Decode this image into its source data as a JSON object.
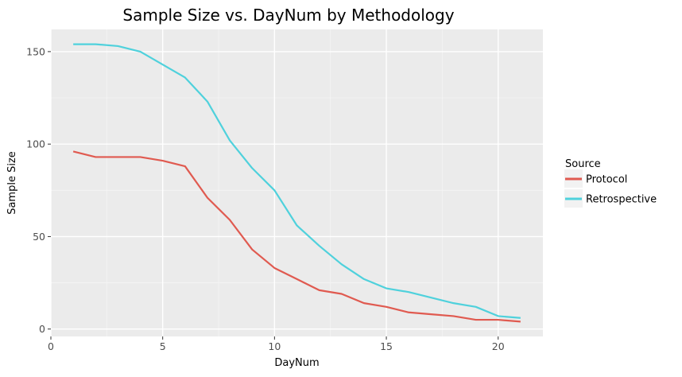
{
  "chart_data": {
    "type": "line",
    "title": "Sample Size vs. DayNum by Methodology",
    "xlabel": "DayNum",
    "ylabel": "Sample Size",
    "xlim": [
      0,
      22
    ],
    "ylim": [
      -4,
      162
    ],
    "x_ticks": [
      0,
      5,
      10,
      15,
      20
    ],
    "y_ticks": [
      0,
      50,
      100,
      150
    ],
    "grid": true,
    "legend": {
      "title": "Source",
      "placement": "right"
    },
    "x": [
      1,
      2,
      3,
      4,
      5,
      6,
      7,
      8,
      9,
      10,
      11,
      12,
      13,
      14,
      15,
      16,
      17,
      18,
      19,
      20,
      21
    ],
    "series": [
      {
        "name": "Protocol",
        "color": "#e05a50",
        "values": [
          96,
          93,
          93,
          93,
          91,
          88,
          71,
          59,
          43,
          33,
          27,
          21,
          19,
          14,
          12,
          9,
          8,
          7,
          5,
          5,
          4
        ]
      },
      {
        "name": "Retrospective",
        "color": "#4fd1dc",
        "values": [
          154,
          154,
          153,
          150,
          143,
          136,
          123,
          102,
          87,
          75,
          56,
          45,
          35,
          27,
          22,
          20,
          17,
          14,
          12,
          7,
          6
        ]
      }
    ]
  }
}
